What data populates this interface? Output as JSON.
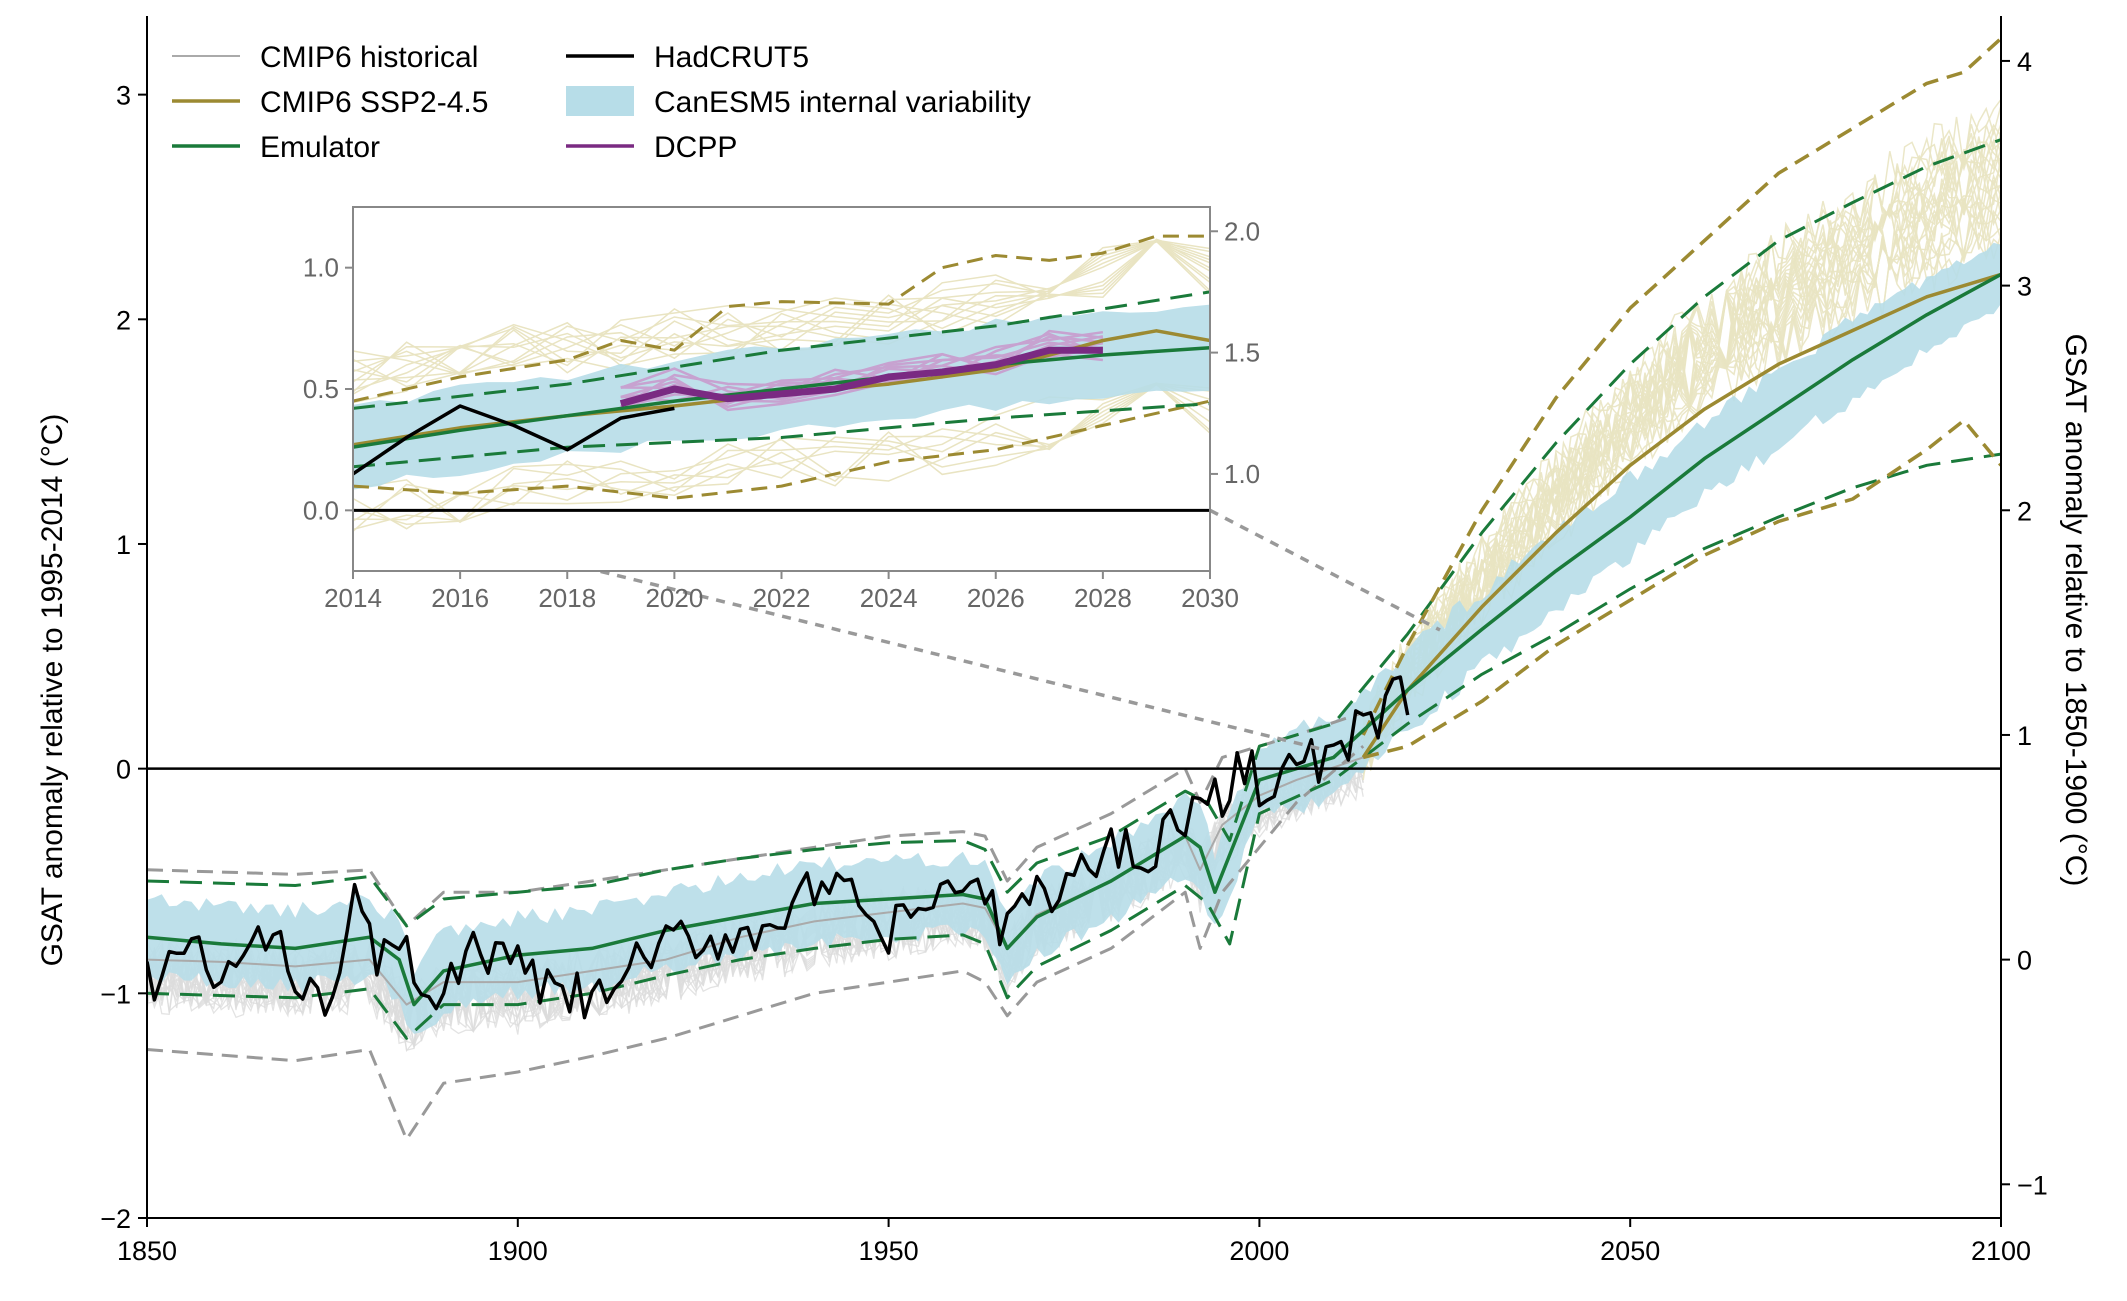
{
  "chart_data": {
    "type": "line",
    "title": "",
    "xlabel": "",
    "ylabel": "GSAT  anomaly relative to 1995-2014 (°C)",
    "ylabel_right": "GSAT anomaly relative to 1850-1900 (°C)",
    "xlim": [
      1850,
      2100
    ],
    "ylim": [
      -2,
      3.35
    ],
    "ylim_right_offset": 0.85,
    "x_ticks": [
      1850,
      1900,
      1950,
      2000,
      2050,
      2100
    ],
    "y_ticks": [
      -2,
      -1,
      0,
      1,
      2,
      3
    ],
    "y_ticks_right": [
      -1,
      0,
      1,
      2,
      3,
      4
    ],
    "grid": false,
    "legend_position": "top-left",
    "legend": [
      {
        "label": "CMIP6 historical",
        "color": "#aaaaaa",
        "kind": "line"
      },
      {
        "label": "CMIP6 SSP2-4.5",
        "color": "#9c8a32",
        "kind": "line"
      },
      {
        "label": "Emulator",
        "color": "#1a7a3a",
        "kind": "line"
      },
      {
        "label": "HadCRUT5",
        "color": "#000000",
        "kind": "line"
      },
      {
        "label": "CanESM5 internal variability",
        "color": "#b7dde8",
        "kind": "band"
      },
      {
        "label": "DCPP",
        "color": "#7a2a82",
        "kind": "line"
      }
    ],
    "series": [
      {
        "name": "CMIP6 historical mean",
        "color": "#aaaaaa",
        "x": [
          1850,
          1860,
          1870,
          1880,
          1885,
          1890,
          1900,
          1910,
          1920,
          1930,
          1940,
          1950,
          1960,
          1963,
          1966,
          1970,
          1980,
          1990,
          1992,
          1995,
          2000,
          2005,
          2014
        ],
        "y": [
          -0.85,
          -0.86,
          -0.88,
          -0.85,
          -1.05,
          -0.95,
          -0.95,
          -0.9,
          -0.85,
          -0.75,
          -0.68,
          -0.64,
          -0.6,
          -0.62,
          -0.8,
          -0.65,
          -0.5,
          -0.3,
          -0.45,
          -0.25,
          -0.12,
          -0.05,
          0.05
        ]
      },
      {
        "name": "CMIP6 historical 5%",
        "color": "#999999",
        "x": [
          1850,
          1870,
          1880,
          1885,
          1890,
          1900,
          1910,
          1920,
          1930,
          1940,
          1950,
          1960,
          1963,
          1966,
          1970,
          1980,
          1990,
          1992,
          1995,
          2000,
          2005,
          2014
        ],
        "y": [
          -1.25,
          -1.3,
          -1.25,
          -1.65,
          -1.4,
          -1.35,
          -1.28,
          -1.2,
          -1.1,
          -1.0,
          -0.95,
          -0.9,
          -0.95,
          -1.1,
          -0.95,
          -0.8,
          -0.55,
          -0.8,
          -0.55,
          -0.35,
          -0.15,
          0.1
        ]
      },
      {
        "name": "CMIP6 historical 95%",
        "color": "#999999",
        "x": [
          1850,
          1870,
          1880,
          1885,
          1890,
          1900,
          1910,
          1920,
          1930,
          1940,
          1950,
          1960,
          1963,
          1966,
          1970,
          1980,
          1990,
          1992,
          1995,
          2000,
          2005,
          2014
        ],
        "y": [
          -0.45,
          -0.47,
          -0.45,
          -0.7,
          -0.55,
          -0.55,
          -0.5,
          -0.45,
          -0.4,
          -0.35,
          -0.3,
          -0.28,
          -0.3,
          -0.5,
          -0.35,
          -0.2,
          0.0,
          -0.15,
          0.05,
          0.1,
          0.15,
          0.25
        ]
      },
      {
        "name": "Emulator",
        "color": "#1a7a3a",
        "x": [
          1850,
          1860,
          1870,
          1880,
          1884,
          1886,
          1890,
          1900,
          1910,
          1920,
          1930,
          1940,
          1950,
          1960,
          1963,
          1966,
          1970,
          1980,
          1990,
          1992,
          1994,
          2000,
          2010,
          2020,
          2030,
          2040,
          2050,
          2060,
          2070,
          2080,
          2090,
          2100
        ],
        "y": [
          -0.75,
          -0.78,
          -0.8,
          -0.75,
          -0.85,
          -1.05,
          -0.9,
          -0.83,
          -0.8,
          -0.72,
          -0.66,
          -0.6,
          -0.58,
          -0.56,
          -0.58,
          -0.8,
          -0.66,
          -0.5,
          -0.3,
          -0.35,
          -0.55,
          -0.05,
          0.05,
          0.35,
          0.62,
          0.88,
          1.12,
          1.38,
          1.6,
          1.82,
          2.02,
          2.2
        ]
      },
      {
        "name": "Emulator 5%",
        "color": "#1a7a3a",
        "x": [
          1850,
          1870,
          1880,
          1885,
          1890,
          1900,
          1910,
          1920,
          1930,
          1940,
          1950,
          1960,
          1963,
          1966,
          1970,
          1980,
          1990,
          1993,
          1996,
          2000,
          2010,
          2020,
          2030,
          2040,
          2050,
          2060,
          2070,
          2080,
          2090,
          2100
        ],
        "y": [
          -1.0,
          -1.02,
          -0.98,
          -1.2,
          -1.05,
          -1.05,
          -1.0,
          -0.92,
          -0.85,
          -0.8,
          -0.76,
          -0.74,
          -0.78,
          -1.02,
          -0.88,
          -0.72,
          -0.52,
          -0.6,
          -0.78,
          -0.2,
          -0.05,
          0.2,
          0.42,
          0.6,
          0.8,
          0.98,
          1.12,
          1.25,
          1.35,
          1.4
        ]
      },
      {
        "name": "Emulator 95%",
        "color": "#1a7a3a",
        "x": [
          1850,
          1870,
          1880,
          1885,
          1890,
          1900,
          1910,
          1920,
          1930,
          1940,
          1950,
          1960,
          1963,
          1966,
          1970,
          1980,
          1990,
          1993,
          1996,
          2000,
          2010,
          2020,
          2030,
          2040,
          2050,
          2060,
          2070,
          2080,
          2090,
          2100
        ],
        "y": [
          -0.5,
          -0.52,
          -0.48,
          -0.7,
          -0.58,
          -0.55,
          -0.52,
          -0.45,
          -0.4,
          -0.36,
          -0.33,
          -0.32,
          -0.36,
          -0.55,
          -0.42,
          -0.3,
          -0.1,
          -0.15,
          -0.32,
          0.1,
          0.2,
          0.6,
          1.05,
          1.45,
          1.8,
          2.1,
          2.35,
          2.52,
          2.68,
          2.8
        ]
      },
      {
        "name": "CMIP6 SSP2-4.5",
        "color": "#9c8a32",
        "x": [
          2014,
          2020,
          2030,
          2040,
          2050,
          2060,
          2070,
          2080,
          2090,
          2100
        ],
        "y": [
          0.05,
          0.35,
          0.72,
          1.05,
          1.35,
          1.6,
          1.8,
          1.95,
          2.1,
          2.2
        ]
      },
      {
        "name": "CMIP6 SSP2-4.5 5%",
        "color": "#9c8a32",
        "x": [
          2014,
          2020,
          2030,
          2040,
          2050,
          2060,
          2070,
          2080,
          2090,
          2095,
          2100
        ],
        "y": [
          0.05,
          0.1,
          0.3,
          0.55,
          0.75,
          0.95,
          1.1,
          1.2,
          1.42,
          1.55,
          1.35
        ]
      },
      {
        "name": "CMIP6 SSP2-4.5 95%",
        "color": "#9c8a32",
        "x": [
          2014,
          2020,
          2030,
          2040,
          2050,
          2060,
          2070,
          2080,
          2090,
          2095,
          2100
        ],
        "y": [
          0.15,
          0.55,
          1.15,
          1.65,
          2.05,
          2.35,
          2.65,
          2.85,
          3.05,
          3.1,
          3.25
        ]
      },
      {
        "name": "HadCRUT5",
        "color": "#000000",
        "x": [
          1850,
          1855,
          1860,
          1865,
          1870,
          1875,
          1878,
          1880,
          1885,
          1890,
          1895,
          1900,
          1905,
          1910,
          1915,
          1920,
          1925,
          1930,
          1935,
          1940,
          1945,
          1950,
          1955,
          1960,
          1965,
          1970,
          1975,
          1980,
          1985,
          1990,
          1995,
          1998,
          2000,
          2005,
          2010,
          2015,
          2020
        ],
        "y": [
          -0.95,
          -0.8,
          -0.95,
          -0.75,
          -0.9,
          -1.0,
          -0.6,
          -0.8,
          -0.85,
          -1.0,
          -0.8,
          -0.9,
          -1.0,
          -1.05,
          -0.9,
          -0.8,
          -0.75,
          -0.75,
          -0.65,
          -0.55,
          -0.6,
          -0.75,
          -0.6,
          -0.5,
          -0.7,
          -0.55,
          -0.5,
          -0.35,
          -0.35,
          -0.2,
          -0.15,
          0.05,
          -0.05,
          0.0,
          0.05,
          0.2,
          0.35
        ]
      }
    ],
    "band": {
      "name": "CanESM5 internal variability",
      "color": "#b7dde8",
      "half_width": 0.17
    },
    "inset": {
      "xlim": [
        2014,
        2030
      ],
      "ylim": [
        -0.25,
        1.25
      ],
      "x_ticks": [
        2014,
        2016,
        2018,
        2020,
        2022,
        2024,
        2026,
        2028,
        2030
      ],
      "y_ticks": [
        0.0,
        0.5,
        1.0
      ],
      "y_ticks_right": [
        1.0,
        1.5,
        2.0
      ],
      "series": [
        {
          "name": "HadCRUT5",
          "x": [
            2014,
            2015,
            2016,
            2017,
            2018,
            2019,
            2020
          ],
          "y": [
            0.15,
            0.3,
            0.43,
            0.35,
            0.25,
            0.38,
            0.42
          ]
        },
        {
          "name": "Emulator",
          "x": [
            2014,
            2016,
            2018,
            2020,
            2022,
            2024,
            2026,
            2028,
            2030
          ],
          "y": [
            0.26,
            0.33,
            0.39,
            0.45,
            0.5,
            0.55,
            0.6,
            0.64,
            0.67
          ]
        },
        {
          "name": "Emulator 5%",
          "x": [
            2014,
            2018,
            2022,
            2026,
            2030
          ],
          "y": [
            0.18,
            0.26,
            0.3,
            0.38,
            0.44
          ]
        },
        {
          "name": "Emulator 95%",
          "x": [
            2014,
            2018,
            2022,
            2026,
            2030
          ],
          "y": [
            0.42,
            0.52,
            0.66,
            0.76,
            0.9
          ]
        },
        {
          "name": "CMIP6 SSP2-4.5",
          "x": [
            2014,
            2016,
            2018,
            2020,
            2022,
            2024,
            2026,
            2028,
            2029,
            2030
          ],
          "y": [
            0.27,
            0.34,
            0.39,
            0.43,
            0.48,
            0.52,
            0.58,
            0.7,
            0.74,
            0.7
          ]
        },
        {
          "name": "CMIP6 SSP2-4.5 5%",
          "x": [
            2014,
            2016,
            2018,
            2020,
            2022,
            2024,
            2026,
            2028,
            2030
          ],
          "y": [
            0.1,
            0.07,
            0.1,
            0.05,
            0.1,
            0.2,
            0.25,
            0.35,
            0.45
          ]
        },
        {
          "name": "CMIP6 SSP2-4.5 95%",
          "x": [
            2014,
            2016,
            2018,
            2019,
            2020,
            2021,
            2022,
            2024,
            2025,
            2026,
            2027,
            2028,
            2029,
            2030
          ],
          "y": [
            0.45,
            0.55,
            0.62,
            0.7,
            0.66,
            0.84,
            0.86,
            0.85,
            1.0,
            1.05,
            1.03,
            1.06,
            1.13,
            1.13
          ]
        },
        {
          "name": "DCPP mean",
          "x": [
            2019,
            2020,
            2021,
            2022,
            2023,
            2024,
            2025,
            2026,
            2027,
            2028
          ],
          "y": [
            0.44,
            0.5,
            0.46,
            0.48,
            0.5,
            0.55,
            0.57,
            0.6,
            0.66,
            0.66
          ]
        }
      ]
    }
  }
}
